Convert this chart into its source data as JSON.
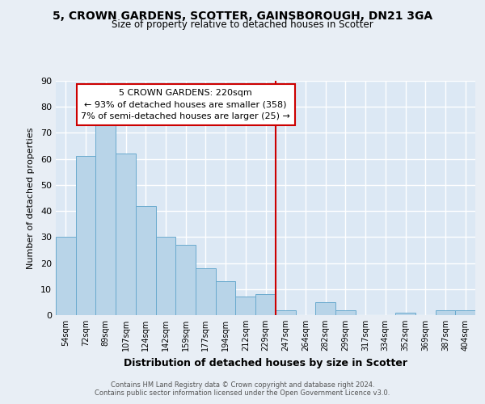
{
  "title": "5, CROWN GARDENS, SCOTTER, GAINSBOROUGH, DN21 3GA",
  "subtitle": "Size of property relative to detached houses in Scotter",
  "xlabel": "Distribution of detached houses by size in Scotter",
  "ylabel": "Number of detached properties",
  "bar_labels": [
    "54sqm",
    "72sqm",
    "89sqm",
    "107sqm",
    "124sqm",
    "142sqm",
    "159sqm",
    "177sqm",
    "194sqm",
    "212sqm",
    "229sqm",
    "247sqm",
    "264sqm",
    "282sqm",
    "299sqm",
    "317sqm",
    "334sqm",
    "352sqm",
    "369sqm",
    "387sqm",
    "404sqm"
  ],
  "bar_values": [
    30,
    61,
    75,
    62,
    42,
    30,
    27,
    18,
    13,
    7,
    8,
    2,
    0,
    5,
    2,
    0,
    0,
    1,
    0,
    2,
    2
  ],
  "bar_color": "#b8d4e8",
  "bar_edge_color": "#6aaace",
  "ylim": [
    0,
    90
  ],
  "yticks": [
    0,
    10,
    20,
    30,
    40,
    50,
    60,
    70,
    80,
    90
  ],
  "vline_x": 10.5,
  "vline_color": "#cc0000",
  "annotation_title": "5 CROWN GARDENS: 220sqm",
  "annotation_line1": "← 93% of detached houses are smaller (358)",
  "annotation_line2": "7% of semi-detached houses are larger (25) →",
  "footer_line1": "Contains HM Land Registry data © Crown copyright and database right 2024.",
  "footer_line2": "Contains public sector information licensed under the Open Government Licence v3.0.",
  "bg_color": "#e8eef5",
  "plot_bg_color": "#dce8f4"
}
